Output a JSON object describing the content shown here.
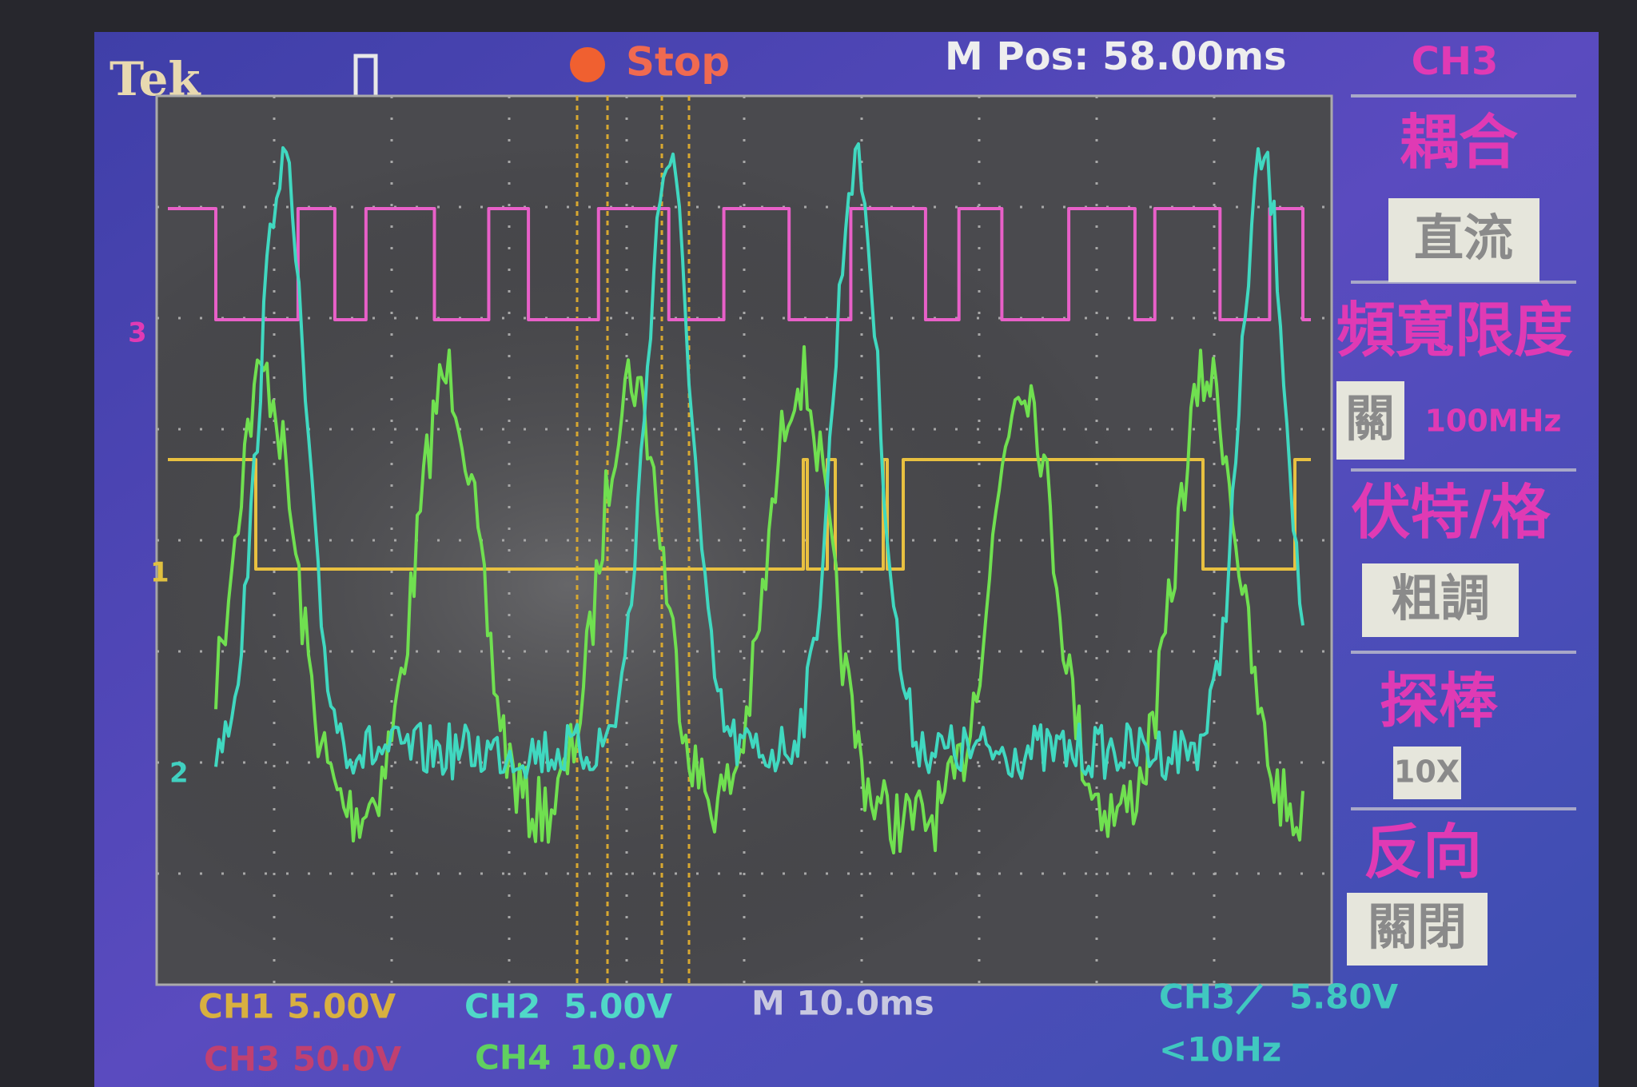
{
  "header": {
    "brand": "Tek",
    "status": "Stop",
    "position": "M Pos: 58.00ms",
    "channel": "CH3"
  },
  "menu": [
    {
      "label": "耦合",
      "value": "直流"
    },
    {
      "label": "頻寬限度",
      "value": "關",
      "note": "100MHz"
    },
    {
      "label": "伏特/格",
      "value": "粗調"
    },
    {
      "label": "探棒",
      "value": "10X"
    },
    {
      "label": "反向",
      "value": "關閉"
    }
  ],
  "markers": [
    "3",
    "1",
    "2"
  ],
  "footer": {
    "ch1": {
      "name": "CH1",
      "scale": "5.00V"
    },
    "ch2": {
      "name": "CH2",
      "scale": "5.00V"
    },
    "ch3": {
      "name": "CH3",
      "scale": "50.0V"
    },
    "ch4": {
      "name": "CH4",
      "scale": "10.0V"
    },
    "timebase": "M 10.0ms",
    "trigger": {
      "source": "CH3",
      "level": "5.80V",
      "frequency": "<10Hz"
    }
  }
}
